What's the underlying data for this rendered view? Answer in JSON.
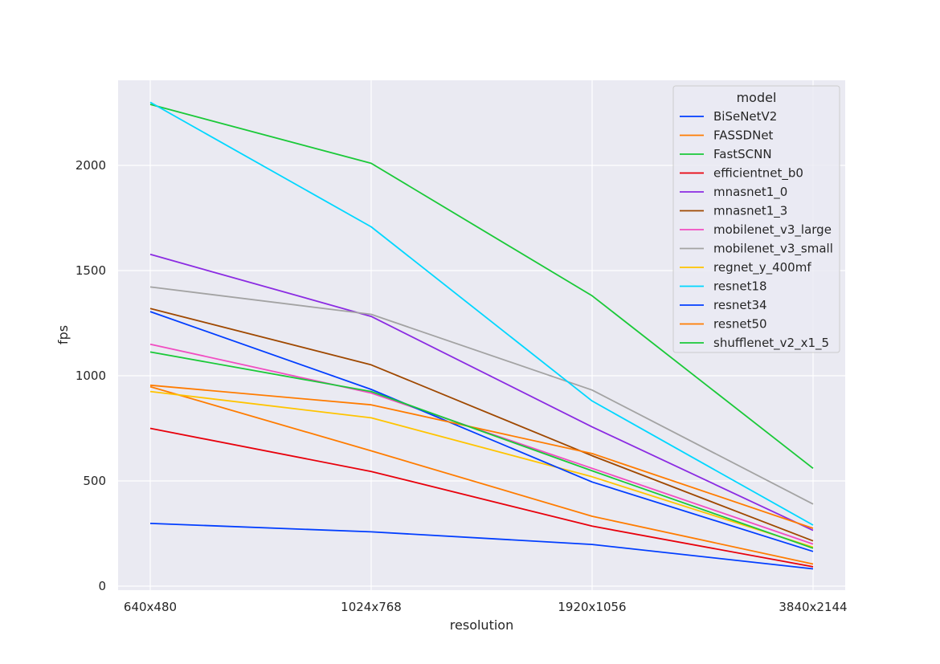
{
  "chart_data": {
    "type": "line",
    "title": "",
    "xlabel": "resolution",
    "ylabel": "fps",
    "categories": [
      "640x480",
      "1024x768",
      "1920x1056",
      "3840x2144"
    ],
    "ylim": [
      -20,
      2400
    ],
    "yticks": [
      0,
      500,
      1000,
      1500,
      2000
    ],
    "grid": true,
    "legend_title": "model",
    "legend_position": "top-right",
    "series": [
      {
        "name": "BiSeNetV2",
        "color": "#023eff",
        "values": [
          298,
          258,
          198,
          82
        ]
      },
      {
        "name": "FASSDNet",
        "color": "#ff7c00",
        "values": [
          948,
          643,
          332,
          105
        ]
      },
      {
        "name": "FastSCNN",
        "color": "#1ac938",
        "values": [
          2290,
          2010,
          1380,
          560
        ]
      },
      {
        "name": "efficientnet_b0",
        "color": "#e8000b",
        "values": [
          750,
          545,
          285,
          92
        ]
      },
      {
        "name": "mnasnet1_0",
        "color": "#8b2be2",
        "values": [
          1577,
          1282,
          757,
          265
        ]
      },
      {
        "name": "mnasnet1_3",
        "color": "#9f4800",
        "values": [
          1320,
          1052,
          620,
          215
        ]
      },
      {
        "name": "mobilenet_v3_large",
        "color": "#f14cc1",
        "values": [
          1150,
          918,
          560,
          200
        ]
      },
      {
        "name": "mobilenet_v3_small",
        "color": "#a3a3a3",
        "values": [
          1422,
          1292,
          932,
          390
        ]
      },
      {
        "name": "regnet_y_400mf",
        "color": "#ffc400",
        "values": [
          925,
          800,
          520,
          185
        ]
      },
      {
        "name": "resnet18",
        "color": "#00d7ff",
        "values": [
          2300,
          1708,
          880,
          290
        ]
      },
      {
        "name": "resnet34",
        "color": "#023eff",
        "values": [
          1305,
          935,
          495,
          165
        ]
      },
      {
        "name": "resnet50",
        "color": "#ff7c00",
        "values": [
          955,
          862,
          630,
          275
        ]
      },
      {
        "name": "shufflenet_v2_x1_5",
        "color": "#1ac938",
        "values": [
          1113,
          925,
          548,
          180
        ]
      }
    ]
  }
}
